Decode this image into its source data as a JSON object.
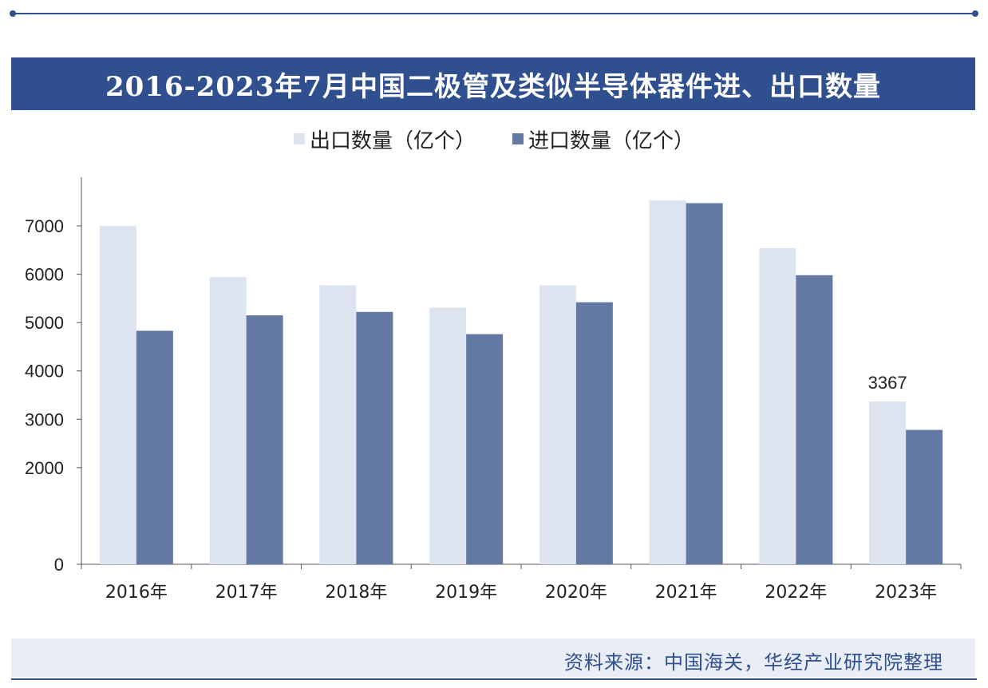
{
  "colors": {
    "export": "#dde3ef",
    "import": "#6379a4",
    "title_bg": "#2f4f8f",
    "axis": "#555555"
  },
  "source": "资料来源：中国海关，华经产业研究院整理",
  "chart_data": {
    "type": "bar",
    "title": "2016-2023年7月中国二极管及类似半导体器件进、出口数量",
    "categories": [
      "2016年",
      "2017年",
      "2018年",
      "2019年",
      "2020年",
      "2021年",
      "2022年",
      "2023年"
    ],
    "series": [
      {
        "name": "出口数量（亿个）",
        "values": [
          7000,
          5940,
          5770,
          5310,
          5770,
          7530,
          6540,
          3367
        ]
      },
      {
        "name": "进口数量（亿个）",
        "values": [
          4830,
          5150,
          5220,
          4760,
          5420,
          7470,
          5980,
          2780
        ]
      }
    ],
    "yticks": [
      0,
      2000,
      3000,
      4000,
      5000,
      6000,
      7000
    ],
    "ylim": [
      0,
      8000
    ],
    "data_labels": [
      {
        "series": 0,
        "index": 7,
        "text": "3367"
      }
    ],
    "grid": false,
    "legend": "top"
  }
}
